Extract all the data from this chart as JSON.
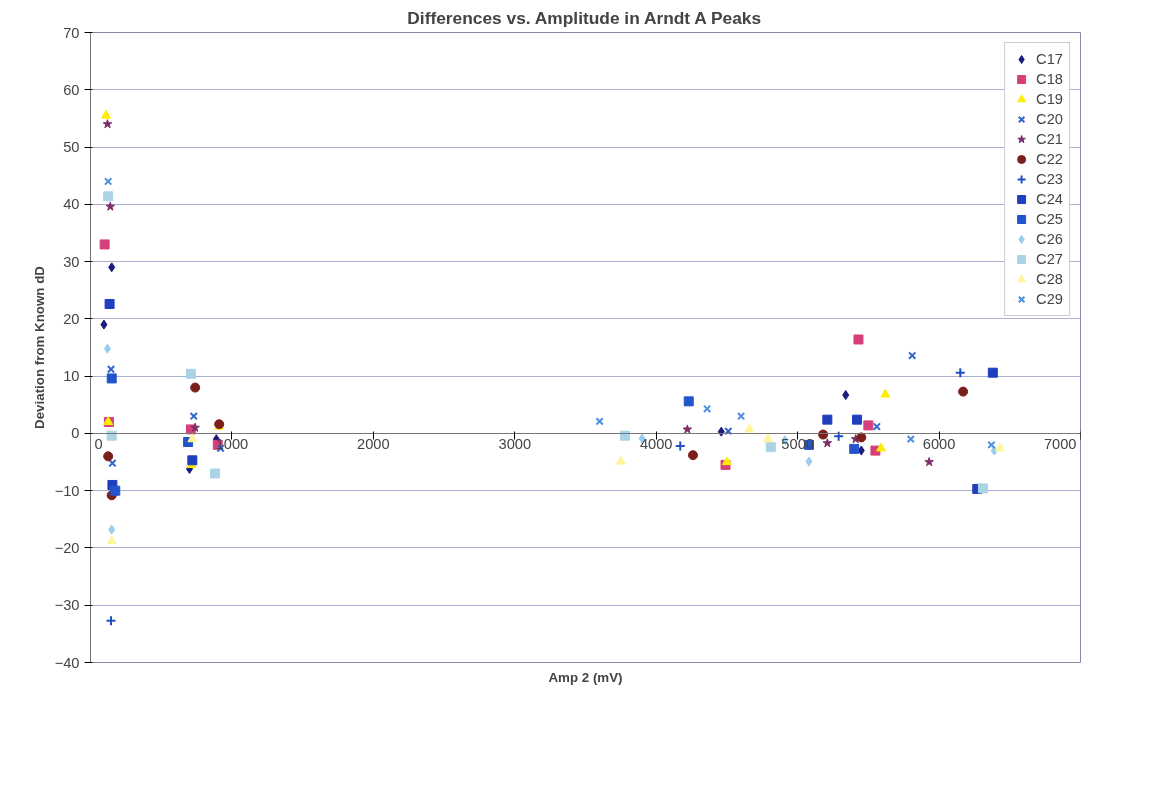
{
  "chart_data": {
    "type": "scatter",
    "title": "Differences vs. Amplitude in Arndt A Peaks",
    "xlabel": "Amp 2 (mV)",
    "ylabel": "Deviation from Known dD",
    "xlim": [
      0,
      7000
    ],
    "ylim": [
      -40,
      70
    ],
    "xticks": [
      0,
      1000,
      2000,
      3000,
      4000,
      5000,
      6000,
      7000
    ],
    "yticks": [
      -40,
      -30,
      -20,
      -10,
      0,
      10,
      20,
      30,
      40,
      50,
      60,
      70
    ],
    "grid": "y",
    "legend": "top right",
    "series": [
      {
        "name": "C17",
        "color": "#1a1a80",
        "marker": "diamond",
        "x": [
          95,
          150,
          700,
          890,
          4460,
          5340,
          5450
        ],
        "values": [
          19,
          29,
          -6.2,
          -1,
          0.3,
          6.7,
          -3
        ]
      },
      {
        "name": "C18",
        "color": "#d6407a",
        "marker": "square",
        "x": [
          100,
          130,
          710,
          900,
          4490,
          5430,
          5500,
          5550
        ],
        "values": [
          33,
          2,
          0.7,
          -2,
          -5.5,
          16.4,
          1.4,
          -3
        ]
      },
      {
        "name": "C19",
        "color": "#ffee00",
        "marker": "triangle",
        "x": [
          110,
          125,
          715,
          910,
          4500,
          5620,
          5590
        ],
        "values": [
          55.5,
          2,
          -5.5,
          1.2,
          -5,
          6.8,
          -2.6
        ]
      },
      {
        "name": "C20",
        "color": "#3366cc",
        "marker": "x",
        "x": [
          145,
          155,
          730,
          920,
          4510,
          5560,
          5810
        ],
        "values": [
          11.2,
          -5.2,
          3,
          -2.6,
          0.4,
          1.2,
          13.6
        ]
      },
      {
        "name": "C21",
        "color": "#7b2d6b",
        "marker": "star",
        "x": [
          120,
          140,
          740,
          4220,
          5210,
          5410,
          5930
        ],
        "values": [
          54,
          39.6,
          1,
          0.7,
          -1.7,
          -1,
          -5
        ]
      },
      {
        "name": "C22",
        "color": "#7a1f1a",
        "marker": "circle",
        "x": [
          125,
          150,
          740,
          910,
          4260,
          5180,
          5450,
          6170
        ],
        "values": [
          -4,
          -10.8,
          8,
          1.6,
          -3.8,
          -0.2,
          -0.7,
          7.3
        ]
      },
      {
        "name": "C23",
        "color": "#1f4fc4",
        "marker": "cross",
        "x": [
          145,
          4170,
          5290,
          6150
        ],
        "values": [
          -32.7,
          -2.2,
          -0.5,
          10.6
        ]
      },
      {
        "name": "C24",
        "color": "#1f3fbf",
        "marker": "square",
        "x": [
          135,
          155,
          720,
          5210,
          5420,
          6380,
          6270
        ],
        "values": [
          22.6,
          -9,
          -4.7,
          2.4,
          2.4,
          10.6,
          -9.7
        ]
      },
      {
        "name": "C25",
        "color": "#2255cc",
        "marker": "square",
        "x": [
          150,
          175,
          690,
          4230,
          5080,
          5400
        ],
        "values": [
          9.6,
          -10,
          -1.5,
          5.6,
          -2,
          -2.7
        ]
      },
      {
        "name": "C26",
        "color": "#99ccee",
        "marker": "diamond",
        "x": [
          120,
          150,
          3900,
          4910,
          5080,
          6390
        ],
        "values": [
          14.8,
          -16.8,
          -0.9,
          -1.2,
          -4.9,
          -3
        ]
      },
      {
        "name": "C27",
        "color": "#aad4e6",
        "marker": "square",
        "x": [
          125,
          150,
          710,
          880,
          3780,
          4810,
          6310
        ],
        "values": [
          41.4,
          -0.4,
          10.4,
          -7,
          -0.4,
          -2.4,
          -9.6
        ]
      },
      {
        "name": "C28",
        "color": "#fff59d",
        "marker": "triangle",
        "x": [
          150,
          720,
          3750,
          4660,
          4790,
          6430
        ],
        "values": [
          -18.8,
          -1,
          -4.9,
          0.7,
          -1,
          -2.6
        ]
      },
      {
        "name": "C29",
        "color": "#4d8fe0",
        "marker": "x",
        "x": [
          125,
          3600,
          4360,
          4600,
          5800,
          6370
        ],
        "values": [
          44,
          2.1,
          4.3,
          3,
          -1,
          -2
        ]
      }
    ]
  }
}
